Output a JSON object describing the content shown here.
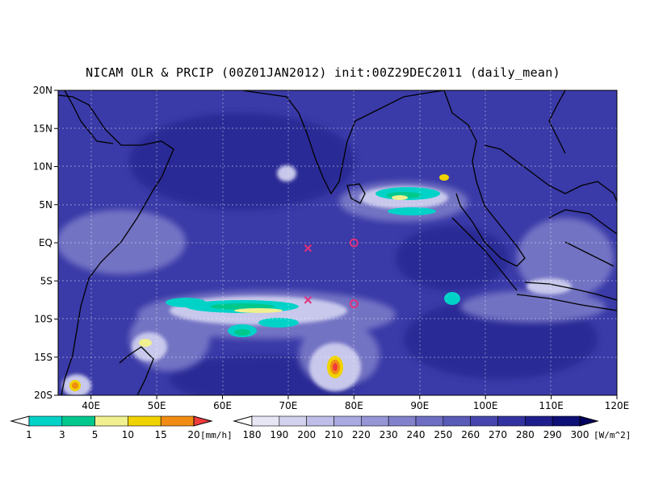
{
  "title": "NICAM OLR & PRCIP (00Z01JAN2012) init:00Z29DEC2011 (daily_mean)",
  "map": {
    "lon_range": [
      35,
      120
    ],
    "lat_range": [
      -20,
      20
    ],
    "x_ticks": [
      "40E",
      "50E",
      "60E",
      "70E",
      "80E",
      "90E",
      "100E",
      "110E",
      "120E"
    ],
    "x_tick_values": [
      40,
      50,
      60,
      70,
      80,
      90,
      100,
      110,
      120
    ],
    "y_ticks": [
      "20S",
      "15S",
      "10S",
      "5S",
      "EQ",
      "5N",
      "10N",
      "15N",
      "20N"
    ],
    "y_tick_values": [
      -20,
      -15,
      -10,
      -5,
      0,
      5,
      10,
      15,
      20
    ],
    "grid": true,
    "markers": [
      {
        "type": "x",
        "lon": 73,
        "lat": -0.7,
        "color": "#e0307a"
      },
      {
        "type": "x",
        "lon": 73,
        "lat": -7.5,
        "color": "#e0307a"
      },
      {
        "type": "circle",
        "lon": 80,
        "lat": 0,
        "color": "#e0307a"
      },
      {
        "type": "circle",
        "lon": 80,
        "lat": -8,
        "color": "#e0307a"
      }
    ]
  },
  "colorbars": {
    "precip": {
      "labels": [
        "1",
        "3",
        "5",
        "10",
        "15",
        "20"
      ],
      "colors": [
        "#ffffff",
        "#00d2c8",
        "#00c88c",
        "#f0f090",
        "#f0d200",
        "#f08c14",
        "#f03c3c"
      ],
      "unit": "[mm/h]"
    },
    "olr": {
      "labels": [
        "180",
        "190",
        "200",
        "210",
        "220",
        "230",
        "240",
        "250",
        "260",
        "270",
        "280",
        "290",
        "300"
      ],
      "colors": [
        "#ffffff",
        "#e6e6f5",
        "#d2d2ee",
        "#bebee8",
        "#aaaae0",
        "#9696d6",
        "#8282cc",
        "#6e6ec2",
        "#5a5ab8",
        "#4646ae",
        "#3232a0",
        "#1e1e8c",
        "#0f0f78",
        "#000060"
      ],
      "unit": "[W/m^2]"
    }
  }
}
